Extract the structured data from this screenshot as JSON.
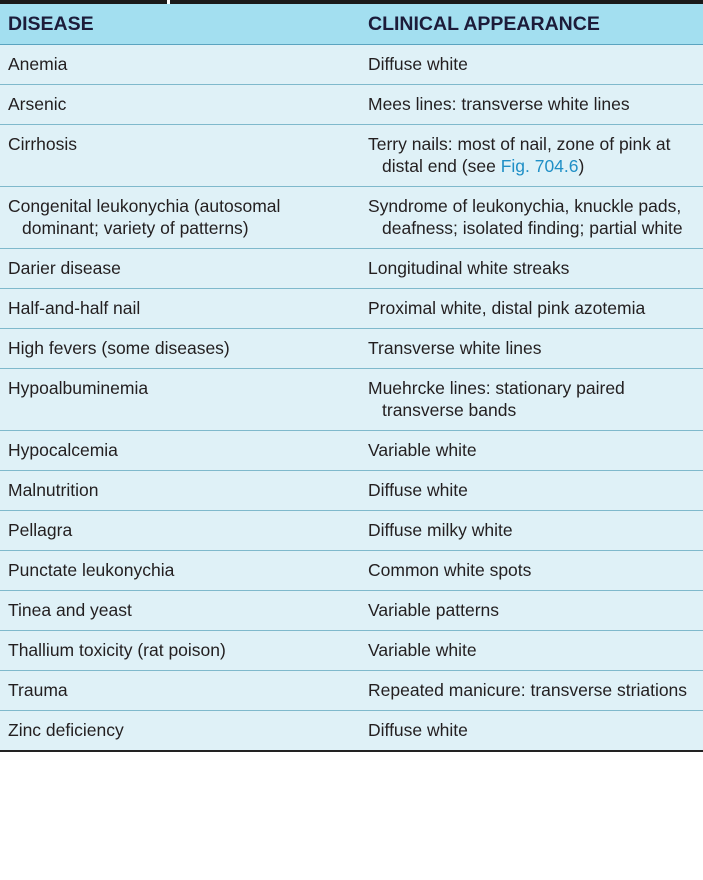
{
  "headers": {
    "disease": "DISEASE",
    "appearance": "CLINICAL APPEARANCE"
  },
  "rows": [
    {
      "disease": "Anemia",
      "appearance": "Diffuse white"
    },
    {
      "disease": "Arsenic",
      "appearance": "Mees lines: transverse white lines"
    },
    {
      "disease": "Cirrhosis",
      "appearance_pre": "Terry nails: most of nail, zone of pink at distal end (see ",
      "appearance_link": "Fig. 704.6",
      "appearance_post": ")"
    },
    {
      "disease": "Congenital leukonychia (autosomal dominant; variety of patterns)",
      "appearance": "Syndrome of leukonychia, knuckle pads, deafness; isolated finding; partial white"
    },
    {
      "disease": "Darier disease",
      "appearance": "Longitudinal white streaks"
    },
    {
      "disease": "Half-and-half nail",
      "appearance": "Proximal white, distal pink azotemia"
    },
    {
      "disease": "High fevers (some diseases)",
      "appearance": "Transverse white lines"
    },
    {
      "disease": "Hypoalbuminemia",
      "appearance": "Muehrcke lines: stationary paired transverse bands"
    },
    {
      "disease": "Hypocalcemia",
      "appearance": "Variable white"
    },
    {
      "disease": "Malnutrition",
      "appearance": "Diffuse white"
    },
    {
      "disease": "Pellagra",
      "appearance": "Diffuse milky white"
    },
    {
      "disease": "Punctate leukonychia",
      "appearance": "Common white spots"
    },
    {
      "disease": "Tinea and yeast",
      "appearance": "Variable patterns"
    },
    {
      "disease": "Thallium toxicity (rat poison)",
      "appearance": "Variable white"
    },
    {
      "disease": "Trauma",
      "appearance": "Repeated manicure: transverse striations"
    },
    {
      "disease": "Zinc deficiency",
      "appearance": "Diffuse white"
    }
  ]
}
